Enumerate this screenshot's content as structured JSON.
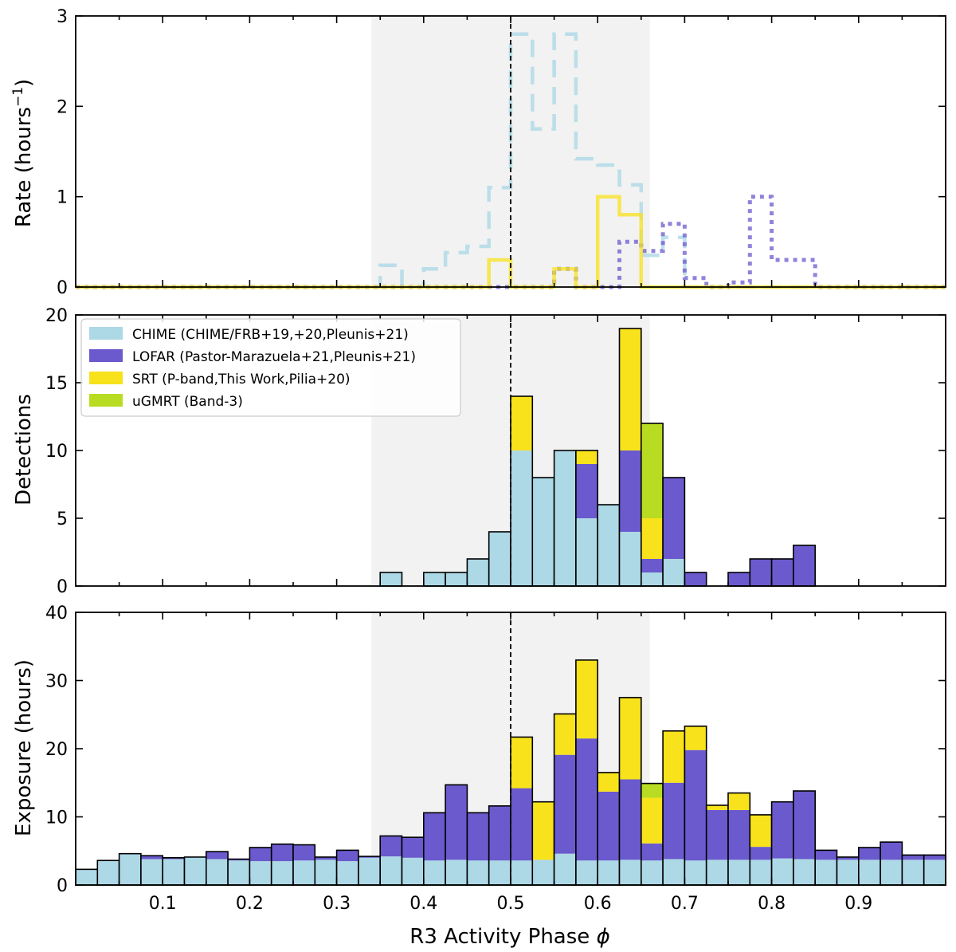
{
  "colors": {
    "chime": "#add8e6",
    "lofar": "#6a5acd",
    "srt": "#f7e21c",
    "ugmrt": "#b8dc22",
    "shade": "#f2f2f2"
  },
  "chart_data": [
    {
      "type": "line",
      "panel": "rate",
      "ylabel": "Rate (hours",
      "ylabel_sup": "−1",
      "ylabel_close": ")",
      "xlim": [
        0,
        1
      ],
      "ylim": [
        0,
        3
      ],
      "yticks": [
        0,
        1,
        2,
        3
      ],
      "active_window": [
        0.34,
        0.66
      ],
      "center_line": 0.5,
      "bin_width": 0.025,
      "series": [
        {
          "name": "CHIME",
          "style": "dashed",
          "values": [
            0,
            0,
            0,
            0,
            0,
            0,
            0,
            0,
            0,
            0,
            0,
            0,
            0,
            0,
            0.24,
            0,
            0.2,
            0.38,
            0.45,
            1.1,
            2.8,
            1.75,
            2.8,
            1.42,
            1.35,
            1.13,
            0.35,
            0.55,
            0,
            0,
            0,
            0,
            0,
            0,
            0,
            0,
            0,
            0,
            0,
            0
          ]
        },
        {
          "name": "LOFAR",
          "style": "dotted",
          "values": [
            0,
            0,
            0,
            0,
            0,
            0,
            0,
            0,
            0,
            0,
            0,
            0,
            0,
            0,
            0,
            0,
            0,
            0,
            0,
            0,
            0,
            0,
            0.2,
            0,
            0,
            0.5,
            0.4,
            0.7,
            0.1,
            0,
            0.05,
            1.0,
            0.3,
            0.3,
            0,
            0,
            0,
            0,
            0,
            0
          ]
        },
        {
          "name": "SRT",
          "style": "solid",
          "values": [
            0,
            0,
            0,
            0,
            0,
            0,
            0,
            0,
            0,
            0,
            0,
            0,
            0,
            0,
            0,
            0,
            0,
            0,
            0,
            0.3,
            0,
            0,
            0.2,
            0,
            1.0,
            0.8,
            0,
            0,
            0,
            0,
            0,
            0,
            0,
            0,
            0,
            0,
            0,
            0,
            0,
            0
          ]
        }
      ]
    },
    {
      "type": "bar",
      "panel": "detections",
      "stacked": true,
      "ylabel": "Detections",
      "xlim": [
        0,
        1
      ],
      "ylim": [
        0,
        20
      ],
      "yticks": [
        0,
        5,
        10,
        15,
        20
      ],
      "active_window": [
        0.34,
        0.66
      ],
      "center_line": 0.5,
      "bin_width": 0.025,
      "legend": [
        "CHIME (CHIME/FRB+19,+20,Pleunis+21)",
        "LOFAR (Pastor-Marazuela+21,Pleunis+21)",
        "SRT (P-band,This Work,Pilia+20)",
        "uGMRT (Band-3)"
      ],
      "series": [
        {
          "name": "CHIME",
          "values": [
            0,
            0,
            0,
            0,
            0,
            0,
            0,
            0,
            0,
            0,
            0,
            0,
            0,
            0,
            1,
            0,
            1,
            1,
            2,
            4,
            10,
            8,
            10,
            5,
            6,
            4,
            1,
            2,
            0,
            0,
            0,
            0,
            0,
            0,
            0,
            0,
            0,
            0,
            0,
            0
          ]
        },
        {
          "name": "LOFAR",
          "values": [
            0,
            0,
            0,
            0,
            0,
            0,
            0,
            0,
            0,
            0,
            0,
            0,
            0,
            0,
            0,
            0,
            0,
            0,
            0,
            0,
            0,
            0,
            0,
            4,
            0,
            6,
            1,
            6,
            1,
            0,
            1,
            2,
            2,
            3,
            0,
            0,
            0,
            0,
            0,
            0
          ]
        },
        {
          "name": "SRT",
          "values": [
            0,
            0,
            0,
            0,
            0,
            0,
            0,
            0,
            0,
            0,
            0,
            0,
            0,
            0,
            0,
            0,
            0,
            0,
            0,
            0,
            4,
            0,
            0,
            1,
            0,
            9,
            3,
            0,
            0,
            0,
            0,
            0,
            0,
            0,
            0,
            0,
            0,
            0,
            0,
            0
          ]
        },
        {
          "name": "uGMRT",
          "values": [
            0,
            0,
            0,
            0,
            0,
            0,
            0,
            0,
            0,
            0,
            0,
            0,
            0,
            0,
            0,
            0,
            0,
            0,
            0,
            0,
            0,
            0,
            0,
            0,
            0,
            0,
            7,
            0,
            0,
            0,
            0,
            0,
            0,
            0,
            0,
            0,
            0,
            0,
            0,
            0
          ]
        }
      ]
    },
    {
      "type": "bar",
      "panel": "exposure",
      "stacked": true,
      "ylabel": "Exposure (hours)",
      "xlabel": "R3 Activity Phase ",
      "xlabel_symbol": "ϕ",
      "xlim": [
        0,
        1
      ],
      "ylim": [
        0,
        40
      ],
      "yticks": [
        0,
        10,
        20,
        30,
        40
      ],
      "xticks": [
        "0.1",
        "0.2",
        "0.3",
        "0.4",
        "0.5",
        "0.6",
        "0.7",
        "0.8",
        "0.9"
      ],
      "active_window": [
        0.34,
        0.66
      ],
      "center_line": 0.5,
      "bin_width": 0.025,
      "series": [
        {
          "name": "CHIME",
          "values": [
            2.3,
            3.6,
            4.6,
            3.8,
            3.8,
            4.1,
            3.8,
            3.6,
            3.5,
            3.5,
            3.6,
            3.7,
            3.5,
            4.0,
            4.2,
            4.0,
            3.6,
            3.7,
            3.6,
            3.6,
            3.6,
            3.7,
            4.6,
            3.6,
            3.6,
            3.7,
            3.6,
            3.8,
            3.6,
            3.7,
            3.7,
            3.7,
            3.9,
            3.8,
            3.7,
            3.7,
            3.7,
            3.7,
            3.7,
            3.7
          ]
        },
        {
          "name": "LOFAR",
          "values": [
            0,
            0,
            0,
            0.5,
            0.2,
            0,
            1.1,
            0.2,
            2.0,
            2.5,
            2.3,
            0.4,
            1.6,
            0.2,
            3.0,
            3.0,
            7.0,
            11.0,
            7.0,
            8.0,
            10.6,
            0,
            14.5,
            17.9,
            10.1,
            11.8,
            2.5,
            11.2,
            16.2,
            7.3,
            7.3,
            1.9,
            8.3,
            10.0,
            1.4,
            0.4,
            1.8,
            2.6,
            0.7,
            0.7
          ]
        },
        {
          "name": "SRT",
          "values": [
            0,
            0,
            0,
            0,
            0,
            0,
            0,
            0,
            0,
            0,
            0,
            0,
            0,
            0,
            0,
            0,
            0,
            0,
            0,
            0,
            7.5,
            8.5,
            6.0,
            11.5,
            2.8,
            12.0,
            6.7,
            7.6,
            3.5,
            0.7,
            2.5,
            4.7,
            0,
            0,
            0,
            0,
            0,
            0,
            0,
            0
          ]
        },
        {
          "name": "uGMRT",
          "values": [
            0,
            0,
            0,
            0,
            0,
            0,
            0,
            0,
            0,
            0,
            0,
            0,
            0,
            0,
            0,
            0,
            0,
            0,
            0,
            0,
            0,
            0,
            0,
            0,
            0,
            0,
            2.1,
            0,
            0,
            0,
            0,
            0,
            0,
            0,
            0,
            0,
            0,
            0,
            0,
            0
          ]
        }
      ]
    }
  ]
}
